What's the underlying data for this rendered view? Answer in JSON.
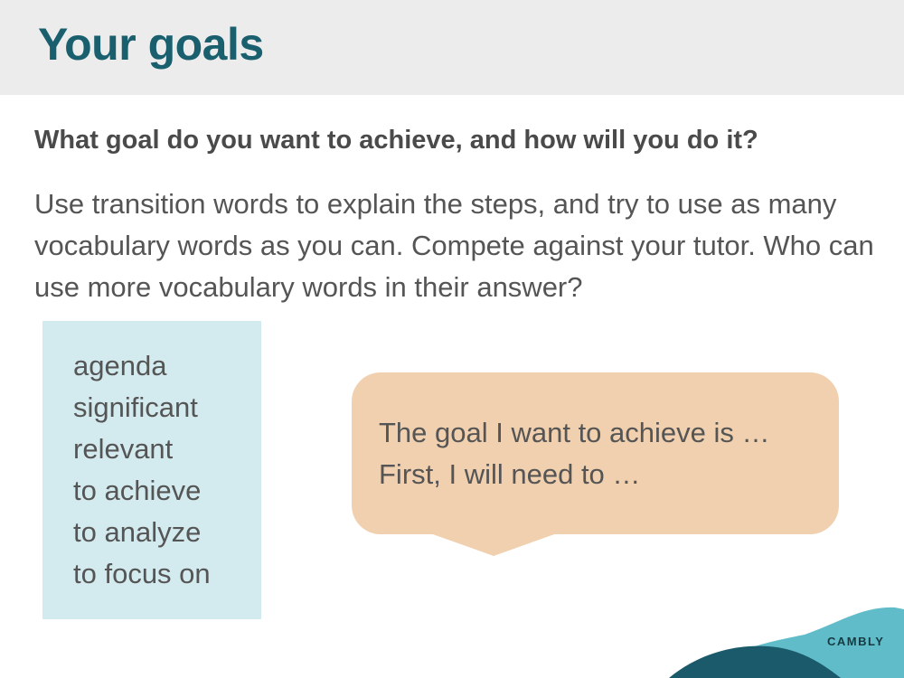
{
  "slide": {
    "title": "Your goals",
    "question": "What goal do you want to achieve, and how will you do it?",
    "instructions": "Use transition words to explain the steps, and try to use as many vocabulary words as you can. Compete against your tutor. Who can use more vocabulary words in their answer?"
  },
  "vocabulary": [
    "agenda",
    "significant",
    "relevant",
    "to achieve",
    "to analyze",
    "to focus on"
  ],
  "speech_bubble": {
    "lines": [
      "The goal I want to achieve is …",
      "First, I will need to …"
    ]
  },
  "brand": {
    "logo_text": "CAMBLY"
  },
  "colors": {
    "title": "#1a5f6e",
    "header_bg": "#ececec",
    "vocab_bg": "#d3ebef",
    "bubble_bg": "#f0d0ae",
    "text": "#555555",
    "decor_light": "#5fbcc8",
    "decor_dark": "#1a5a6a"
  }
}
